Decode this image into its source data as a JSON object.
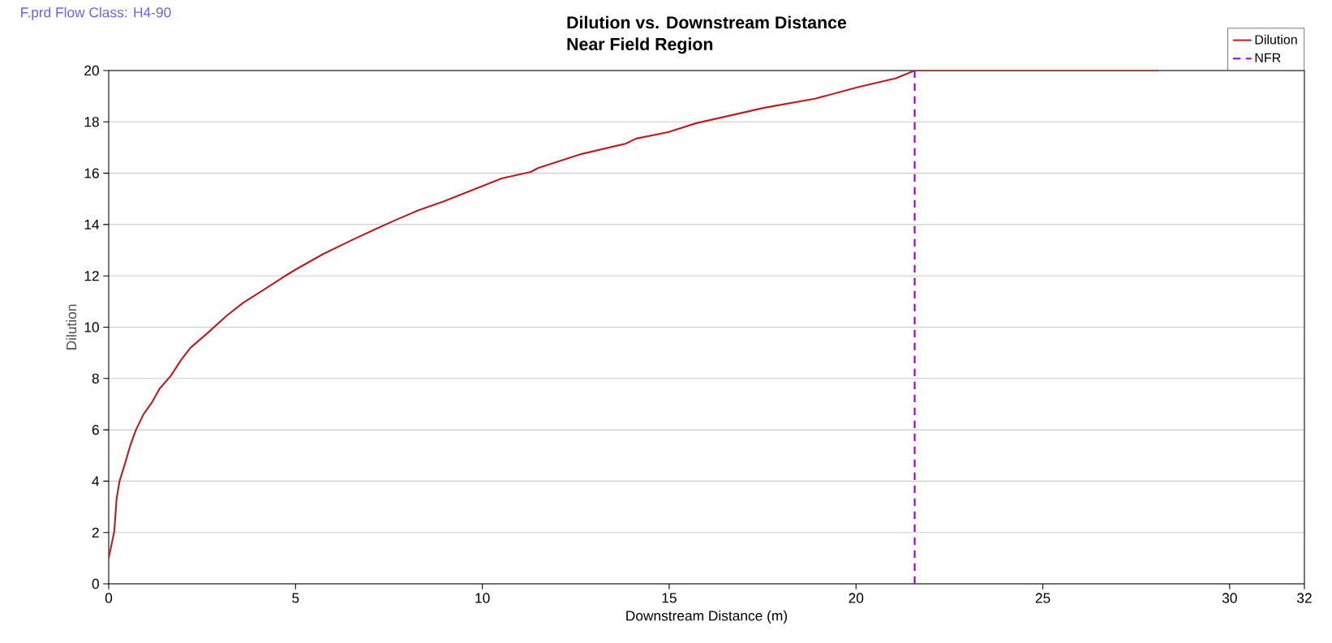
{
  "chart_data": {
    "type": "line",
    "title": "Dilution vs. Downstream Distance",
    "subtitle": "Near Field Region",
    "xlabel": "Downstream Distance (m)",
    "ylabel": "Dilution",
    "annotations": [
      "F.prd    Flow Class: H4-90"
    ],
    "xlim": [
      0,
      32
    ],
    "xticks": [
      0,
      5,
      10,
      15,
      20,
      25,
      30,
      32
    ],
    "ylim": [
      0,
      20
    ],
    "yticks": [
      0,
      2,
      4,
      6,
      8,
      10,
      12,
      14,
      16,
      18,
      20
    ],
    "grid": "y",
    "legend": "top right",
    "marker": "none",
    "series": [
      {
        "name": "Dilution",
        "color": "#b52025",
        "line_style": "solid",
        "x": [
          0,
          0.15,
          0.21,
          0.29,
          0.44,
          0.58,
          0.73,
          0.93,
          1.17,
          1.36,
          1.66,
          1.95,
          2.19,
          2.63,
          3.16,
          3.6,
          4.14,
          4.67,
          5.01,
          5.74,
          6.52,
          7.11,
          7.64,
          8.28,
          8.96,
          9.74,
          10.52,
          11.3,
          11.49,
          12.66,
          13.83,
          14.12,
          14.97,
          15.73,
          17.55,
          18.9,
          20.05,
          21.07,
          21.57,
          28.1
        ],
        "values": [
          1.0,
          2.05,
          3.3,
          4.0,
          4.7,
          5.4,
          6.0,
          6.6,
          7.1,
          7.6,
          8.1,
          8.75,
          9.2,
          9.75,
          10.45,
          10.95,
          11.45,
          11.95,
          12.25,
          12.85,
          13.4,
          13.8,
          14.15,
          14.55,
          14.9,
          15.35,
          15.8,
          16.05,
          16.2,
          16.75,
          17.15,
          17.35,
          17.6,
          17.95,
          18.55,
          18.9,
          19.35,
          19.7,
          20,
          20
        ]
      },
      {
        "name": "NFR",
        "color": "#9400d3",
        "line_style": "dashed",
        "x": [
          21.57,
          21.57
        ],
        "values": [
          0,
          20
        ]
      }
    ]
  }
}
